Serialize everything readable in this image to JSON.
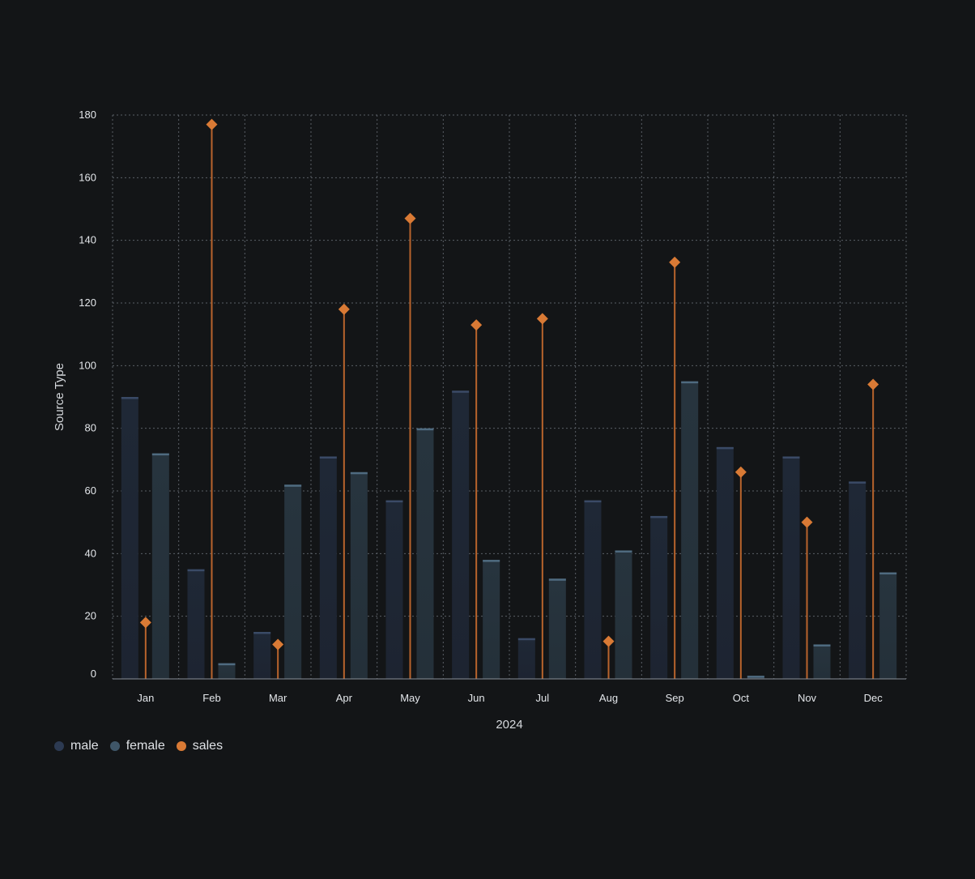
{
  "chart_data": {
    "type": "bar",
    "categories": [
      "Jan",
      "Feb",
      "Mar",
      "Apr",
      "May",
      "Jun",
      "Jul",
      "Aug",
      "Sep",
      "Oct",
      "Nov",
      "Dec"
    ],
    "series": [
      {
        "name": "male",
        "type": "bar",
        "color": "#2c3a52",
        "values": [
          90,
          35,
          15,
          71,
          57,
          92,
          13,
          57,
          52,
          74,
          71,
          63
        ]
      },
      {
        "name": "female",
        "type": "bar",
        "color": "#3f5668",
        "values": [
          72,
          5,
          62,
          66,
          80,
          38,
          32,
          41,
          95,
          1,
          11,
          34
        ]
      },
      {
        "name": "sales",
        "type": "lollipop",
        "color": "#d97a35",
        "values": [
          18,
          177,
          11,
          118,
          147,
          113,
          115,
          12,
          133,
          66,
          50,
          94
        ]
      }
    ],
    "title": "",
    "xlabel": "2024",
    "ylabel": "Source Type",
    "ylim": [
      0,
      180
    ],
    "yticks": [
      0,
      20,
      40,
      60,
      80,
      100,
      120,
      140,
      160,
      180
    ],
    "grid": true,
    "legend_position": "bottom-left"
  }
}
